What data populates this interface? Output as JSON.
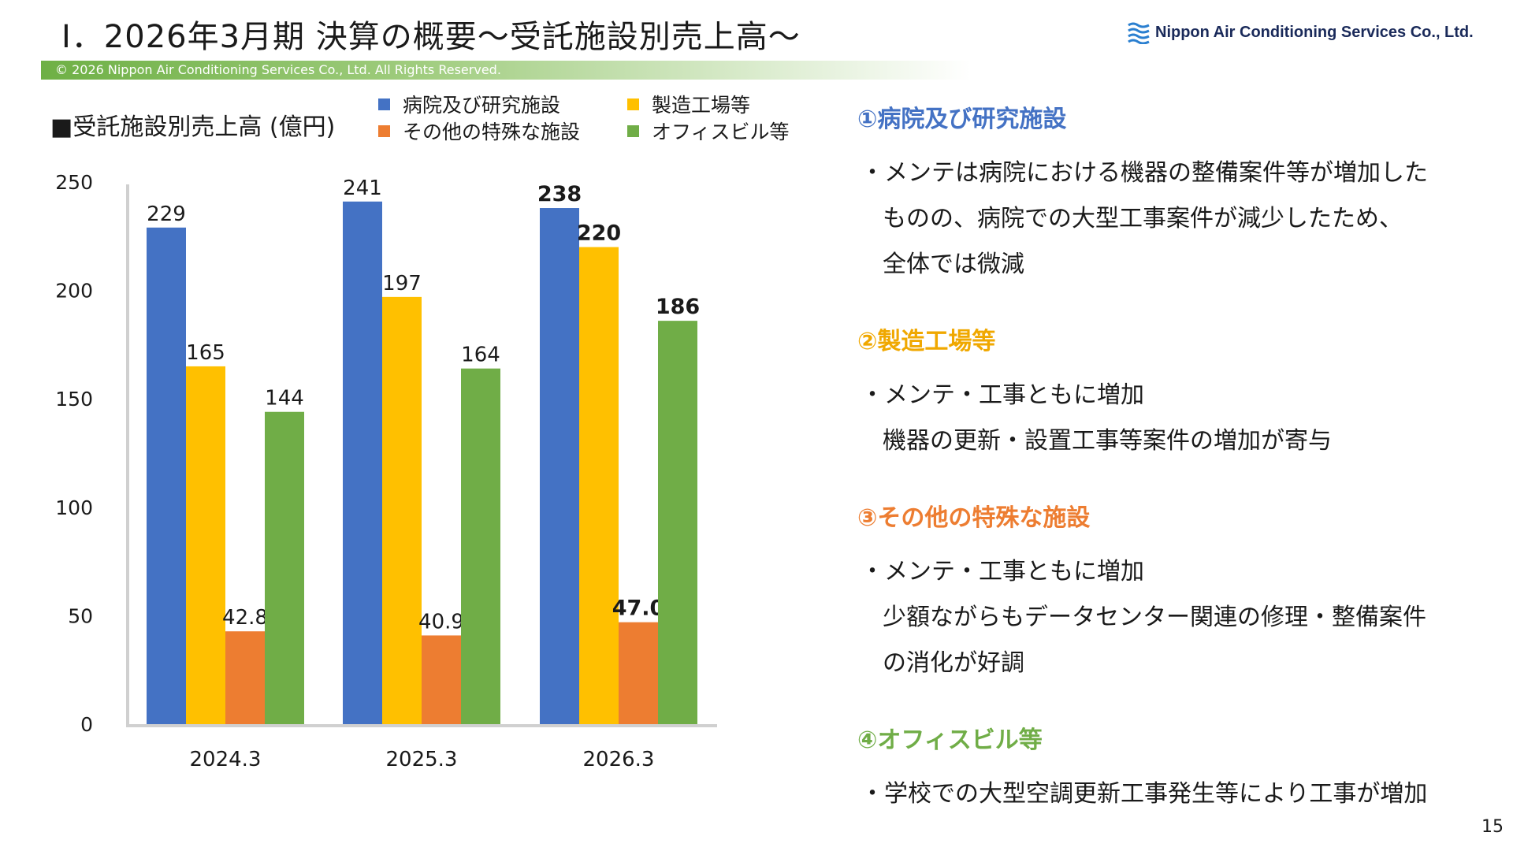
{
  "header": {
    "title": "Ⅰ．2026年3月期 決算の概要～受託施設別売上高～",
    "company_logo_text": "Nippon Air Conditioning Services Co., Ltd.",
    "copyright": "© 2026 Nippon Air Conditioning Services Co., Ltd. All Rights Reserved."
  },
  "chart_data": {
    "type": "bar",
    "title": "■受託施設別売上高 (億円)",
    "categories": [
      "2024.3",
      "2025.3",
      "2026.3"
    ],
    "series": [
      {
        "name": "病院及び研究施設",
        "color": "#4472c4",
        "values": [
          229,
          241,
          238
        ],
        "labels": [
          "229",
          "241",
          "238"
        ]
      },
      {
        "name": "製造工場等",
        "color": "#ffc000",
        "values": [
          165,
          197,
          220
        ],
        "labels": [
          "165",
          "197",
          "220"
        ]
      },
      {
        "name": "その他の特殊な施設",
        "color": "#ed7d31",
        "values": [
          42.8,
          40.9,
          47.0
        ],
        "labels": [
          "42.8",
          "40.9",
          "47.0"
        ]
      },
      {
        "name": "オフィスビル等",
        "color": "#70ad47",
        "values": [
          144,
          164,
          186
        ],
        "labels": [
          "144",
          "164",
          "186"
        ]
      }
    ],
    "bold_category": "2026.3",
    "ylim": [
      0,
      250
    ],
    "yticks": [
      "0",
      "50",
      "100",
      "150",
      "200",
      "250"
    ],
    "grid": false,
    "legend_position": "top"
  },
  "commentary": [
    {
      "heading": "①病院及び研究施設",
      "color": "#4472c4",
      "lines": [
        "・メンテは病院における機器の整備案件等が増加した",
        "ものの、病院での大型工事案件が減少したため、",
        "全体では微減"
      ]
    },
    {
      "heading": "②製造工場等",
      "color": "#f0a800",
      "lines": [
        "・メンテ・工事ともに増加",
        "機器の更新・設置工事等案件の増加が寄与"
      ]
    },
    {
      "heading": "③その他の特殊な施設",
      "color": "#ed7d31",
      "lines": [
        "・メンテ・工事ともに増加",
        "少額ながらもデータセンター関連の修理・整備案件",
        "の消化が好調"
      ]
    },
    {
      "heading": "④オフィスビル等",
      "color": "#70ad47",
      "lines": [
        "・学校での大型空調更新工事発生等により工事が増加"
      ]
    }
  ],
  "page_number": "15"
}
